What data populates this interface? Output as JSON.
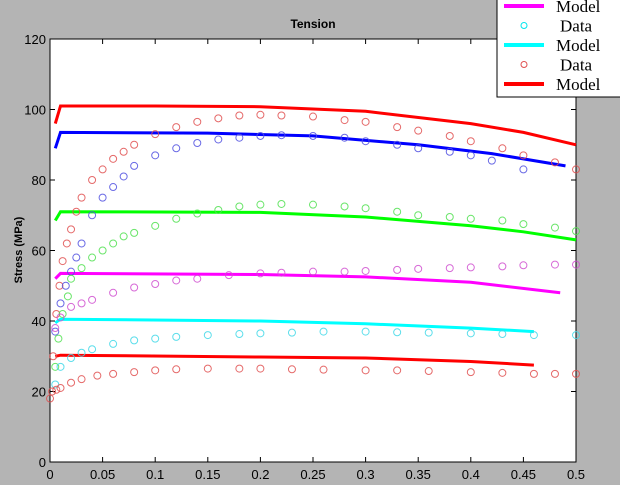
{
  "chart_data": {
    "type": "line",
    "title": "Tension",
    "xlabel": "",
    "ylabel": "Stress (MPa)",
    "xlim": [
      0,
      0.5
    ],
    "ylim": [
      0,
      120
    ],
    "xticks": [
      "0",
      "0.05",
      "0.1",
      "0.15",
      "0.2",
      "0.25",
      "0.3",
      "0.35",
      "0.4",
      "0.45",
      "0.5"
    ],
    "yticks": [
      "0",
      "20",
      "40",
      "60",
      "80",
      "100",
      "120"
    ],
    "grid": false,
    "legend_placement": "top-right (partially clipped)",
    "legend": [
      {
        "label": "Model",
        "kind": "line",
        "color": "#ff00ff"
      },
      {
        "label": "Data",
        "kind": "marker",
        "color": "#00e5ee"
      },
      {
        "label": "Model",
        "kind": "line",
        "color": "#00ffff"
      },
      {
        "label": "Data",
        "kind": "marker",
        "color": "#e05050"
      },
      {
        "label": "Model",
        "kind": "line",
        "color": "#ff0000"
      }
    ],
    "series": [
      {
        "name": "Model",
        "kind": "line",
        "color": "#ff0000",
        "x": [
          0.005,
          0.01,
          0.1,
          0.2,
          0.3,
          0.4,
          0.45,
          0.5
        ],
        "y": [
          96,
          101,
          101,
          100.8,
          99.5,
          96,
          93.5,
          90
        ]
      },
      {
        "name": "Model",
        "kind": "line",
        "color": "#0000ff",
        "x": [
          0.005,
          0.01,
          0.15,
          0.25,
          0.35,
          0.42,
          0.49
        ],
        "y": [
          89,
          93.5,
          93.3,
          92.5,
          90,
          87.5,
          84
        ]
      },
      {
        "name": "Model",
        "kind": "line",
        "color": "#00ff00",
        "x": [
          0.005,
          0.01,
          0.2,
          0.3,
          0.4,
          0.45,
          0.5
        ],
        "y": [
          68.5,
          71,
          70.8,
          69.5,
          67,
          65.3,
          63
        ]
      },
      {
        "name": "Model",
        "kind": "line",
        "color": "#ff00ff",
        "x": [
          0.005,
          0.01,
          0.2,
          0.3,
          0.4,
          0.485
        ],
        "y": [
          52,
          53.5,
          53.2,
          52.5,
          51,
          48
        ]
      },
      {
        "name": "Model",
        "kind": "line",
        "color": "#00ffff",
        "x": [
          0.005,
          0.01,
          0.2,
          0.3,
          0.4,
          0.46
        ],
        "y": [
          39.5,
          40.5,
          40,
          39.2,
          38,
          37
        ]
      },
      {
        "name": "Model",
        "kind": "line",
        "color": "#ff0000",
        "x": [
          0.005,
          0.01,
          0.2,
          0.3,
          0.4,
          0.46
        ],
        "y": [
          30,
          30.3,
          29.8,
          29.5,
          28.5,
          27.5
        ]
      },
      {
        "name": "Data",
        "kind": "marker",
        "color": "#e05050",
        "x": [
          0,
          0.003,
          0.006,
          0.009,
          0.012,
          0.016,
          0.02,
          0.025,
          0.03,
          0.04,
          0.05,
          0.06,
          0.07,
          0.08,
          0.1,
          0.12,
          0.14,
          0.16,
          0.18,
          0.2,
          0.22,
          0.25,
          0.28,
          0.3,
          0.33,
          0.35,
          0.38,
          0.4,
          0.43,
          0.45,
          0.48,
          0.5
        ],
        "y": [
          18,
          30,
          42,
          50,
          57,
          62,
          66,
          71,
          75,
          80,
          83,
          86,
          88,
          90,
          93,
          95,
          96.5,
          97.5,
          98.3,
          98.5,
          98.3,
          98,
          97,
          96.5,
          95,
          94,
          92.5,
          91,
          89,
          87,
          85,
          83
        ]
      },
      {
        "name": "Data",
        "kind": "marker",
        "color": "#5050e0",
        "x": [
          0.005,
          0.01,
          0.015,
          0.02,
          0.025,
          0.03,
          0.04,
          0.05,
          0.06,
          0.07,
          0.08,
          0.1,
          0.12,
          0.14,
          0.16,
          0.18,
          0.2,
          0.22,
          0.25,
          0.28,
          0.3,
          0.33,
          0.35,
          0.38,
          0.4,
          0.42,
          0.45
        ],
        "y": [
          37,
          45,
          50,
          54,
          58,
          62,
          70,
          75,
          78,
          81,
          84,
          87,
          89,
          90.5,
          91.5,
          92,
          92.5,
          92.7,
          92.5,
          92,
          91,
          90,
          89,
          88,
          87,
          85.5,
          83
        ]
      },
      {
        "name": "Data",
        "kind": "marker",
        "color": "#50e050",
        "x": [
          0.005,
          0.008,
          0.012,
          0.017,
          0.02,
          0.03,
          0.04,
          0.05,
          0.06,
          0.07,
          0.08,
          0.1,
          0.12,
          0.14,
          0.16,
          0.18,
          0.2,
          0.22,
          0.25,
          0.28,
          0.3,
          0.33,
          0.35,
          0.38,
          0.4,
          0.43,
          0.45,
          0.48,
          0.5
        ],
        "y": [
          27,
          35,
          42,
          47,
          52,
          55,
          58,
          60,
          62,
          64,
          65,
          67,
          69,
          70.5,
          71.5,
          72.5,
          73,
          73.2,
          73,
          72.5,
          72,
          71,
          70,
          69.5,
          69,
          68.5,
          67.5,
          66.5,
          65.5
        ]
      },
      {
        "name": "Data",
        "kind": "marker",
        "color": "#d050d0",
        "x": [
          0.005,
          0.01,
          0.02,
          0.03,
          0.04,
          0.06,
          0.08,
          0.1,
          0.12,
          0.14,
          0.17,
          0.2,
          0.22,
          0.25,
          0.28,
          0.3,
          0.33,
          0.35,
          0.38,
          0.4,
          0.43,
          0.45,
          0.48,
          0.5
        ],
        "y": [
          38,
          41,
          44,
          45,
          46,
          48,
          49.5,
          50.5,
          51.5,
          52,
          53,
          53.5,
          53.7,
          54,
          54,
          54.2,
          54.5,
          54.8,
          55,
          55.2,
          55.5,
          55.8,
          56,
          56
        ]
      },
      {
        "name": "Data",
        "kind": "marker",
        "color": "#40d8e8",
        "x": [
          0.005,
          0.01,
          0.02,
          0.03,
          0.04,
          0.06,
          0.08,
          0.1,
          0.12,
          0.15,
          0.18,
          0.2,
          0.23,
          0.26,
          0.3,
          0.33,
          0.36,
          0.4,
          0.43,
          0.46,
          0.5
        ],
        "y": [
          22,
          27,
          29.5,
          31,
          32,
          33.5,
          34.5,
          35,
          35.5,
          36,
          36.3,
          36.5,
          36.7,
          37,
          37,
          36.8,
          36.7,
          36.5,
          36.3,
          36,
          36
        ]
      },
      {
        "name": "Data",
        "kind": "marker",
        "color": "#e05050",
        "x": [
          0.002,
          0.006,
          0.01,
          0.02,
          0.03,
          0.045,
          0.06,
          0.08,
          0.1,
          0.12,
          0.15,
          0.18,
          0.2,
          0.23,
          0.26,
          0.3,
          0.33,
          0.36,
          0.4,
          0.43,
          0.46,
          0.48,
          0.5
        ],
        "y": [
          20,
          20.5,
          21,
          22.5,
          23.5,
          24.5,
          25,
          25.5,
          26,
          26.3,
          26.5,
          26.5,
          26.5,
          26.3,
          26.2,
          26,
          26,
          25.8,
          25.5,
          25.3,
          25,
          25,
          25
        ]
      }
    ]
  }
}
